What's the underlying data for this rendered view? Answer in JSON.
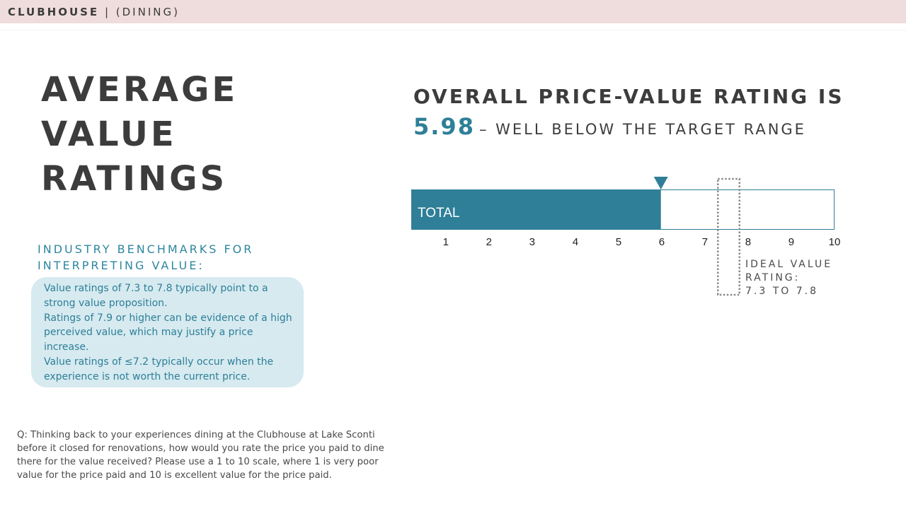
{
  "header": {
    "brand": "CLUBHOUSE",
    "separator": " | ",
    "section": "(DINING)"
  },
  "title": {
    "lines": [
      "AVERAGE",
      "VALUE",
      "RATINGS"
    ]
  },
  "benchmarks": {
    "heading_lines": [
      "INDUSTRY BENCHMARKS FOR",
      "INTERPRETING VALUE:"
    ],
    "items": [
      "Value ratings of 7.3 to 7.8 typically point to a strong value proposition.",
      "Ratings of 7.9 or higher can be evidence of a high perceived value, which may justify a price increase.",
      "Value ratings of ≤7.2 typically occur when the experience is not worth the current price."
    ]
  },
  "question": "Q: Thinking back to your experiences dining at the Clubhouse at Lake Sconti before it closed for renovations, how would you rate the price you paid to dine there for the value received? Please use a 1 to 10 scale, where 1 is very poor value for the price paid and 10 is excellent value for the price paid.",
  "headline": {
    "line1": "OVERALL PRICE-VALUE RATING IS",
    "score": "5.98",
    "rest": "– WELL BELOW THE TARGET RANGE"
  },
  "colors": {
    "bar_fill": "#2e7f97",
    "accent": "#2e86a0",
    "header_bg": "#efdcdc",
    "benchmark_box": "#d6eaf0"
  },
  "chart_data": {
    "type": "bar",
    "orientation": "horizontal",
    "categories": [
      "TOTAL"
    ],
    "values": [
      5.98
    ],
    "xlim": [
      0.2,
      10
    ],
    "x_ticks": [
      1,
      2,
      3,
      4,
      5,
      6,
      7,
      8,
      9,
      10
    ],
    "marker_value": 5.98,
    "ideal_range": [
      7.3,
      7.8
    ],
    "ideal_label_lines": [
      "IDEAL VALUE",
      "RATING:",
      "7.3 TO 7.8"
    ]
  }
}
